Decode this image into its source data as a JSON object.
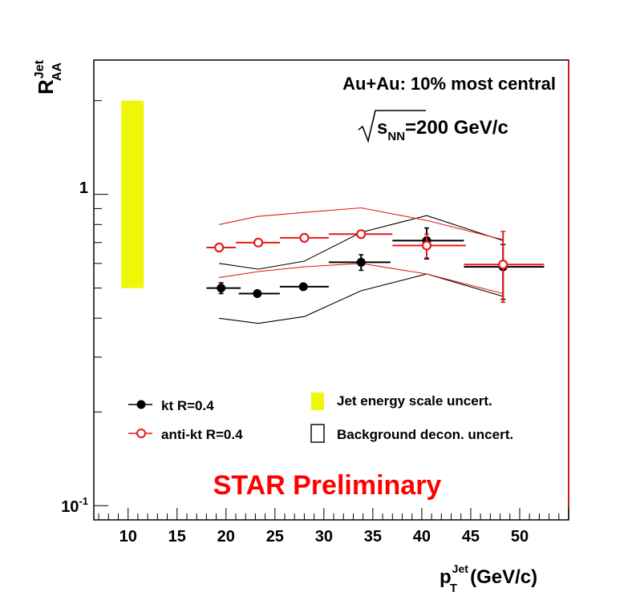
{
  "chart_data": {
    "type": "scatter",
    "scale_y": "log",
    "xlim": [
      6.5,
      55
    ],
    "ylim": [
      0.09,
      2.7
    ],
    "x_ticks": [
      {
        "value": 10,
        "label": "10"
      },
      {
        "value": 15,
        "label": "15"
      },
      {
        "value": 20,
        "label": "20"
      },
      {
        "value": 25,
        "label": "25"
      },
      {
        "value": 30,
        "label": "30"
      },
      {
        "value": 35,
        "label": "35"
      },
      {
        "value": 40,
        "label": "40"
      },
      {
        "value": 45,
        "label": "45"
      },
      {
        "value": 50,
        "label": "50"
      }
    ],
    "y_tick_1": "1",
    "y_tick_01_base": "10",
    "y_tick_01_exp": "-1",
    "xlabel": {
      "main": "p",
      "sub": "T",
      "sup": "Jet",
      "unit": "(GeV/c)"
    },
    "ylabel": {
      "main": "R",
      "sub": "AA",
      "sup": "Jet"
    },
    "annotations": {
      "collision": "Au+Au: 10% most central",
      "energy_s": "s",
      "energy_sub": "NN",
      "energy_value": "=200 GeV/c",
      "preliminary": "STAR Preliminary"
    },
    "series": [
      {
        "name": "kt R=0.4",
        "color": "#000000",
        "marker": "filled-circle",
        "points": [
          {
            "x": 19.5,
            "y": 0.5,
            "xlo": 18.0,
            "xhi": 21.5,
            "ylo": 0.48,
            "yhi": 0.52
          },
          {
            "x": 23.2,
            "y": 0.48,
            "xlo": 21.3,
            "xhi": 25.5,
            "ylo": 0.47,
            "yhi": 0.49
          },
          {
            "x": 27.9,
            "y": 0.505,
            "xlo": 25.5,
            "xhi": 30.5,
            "ylo": 0.495,
            "yhi": 0.515
          },
          {
            "x": 33.8,
            "y": 0.605,
            "xlo": 30.5,
            "xhi": 36.8,
            "ylo": 0.57,
            "yhi": 0.64
          },
          {
            "x": 40.5,
            "y": 0.71,
            "xlo": 37.0,
            "xhi": 44.3,
            "ylo": 0.62,
            "yhi": 0.78
          },
          {
            "x": 48.3,
            "y": 0.585,
            "xlo": 44.3,
            "xhi": 52.5,
            "ylo": 0.46,
            "yhi": 0.69
          }
        ],
        "band_upper": [
          {
            "x": 19.3,
            "y": 0.6
          },
          {
            "x": 23.3,
            "y": 0.575
          },
          {
            "x": 28.0,
            "y": 0.61
          },
          {
            "x": 33.8,
            "y": 0.755
          },
          {
            "x": 40.5,
            "y": 0.855
          },
          {
            "x": 48.3,
            "y": 0.71
          }
        ],
        "band_lower": [
          {
            "x": 19.3,
            "y": 0.4
          },
          {
            "x": 23.3,
            "y": 0.385
          },
          {
            "x": 28.0,
            "y": 0.405
          },
          {
            "x": 33.8,
            "y": 0.49
          },
          {
            "x": 40.5,
            "y": 0.555
          },
          {
            "x": 48.3,
            "y": 0.47
          }
        ]
      },
      {
        "name": "anti-kt R=0.4",
        "color": "#e41a1c",
        "marker": "open-circle",
        "points": [
          {
            "x": 19.3,
            "y": 0.675,
            "xlo": 18.0,
            "xhi": 21.0,
            "ylo": 0.655,
            "yhi": 0.695
          },
          {
            "x": 23.3,
            "y": 0.7,
            "xlo": 21.0,
            "xhi": 25.5,
            "ylo": 0.685,
            "yhi": 0.715
          },
          {
            "x": 28.0,
            "y": 0.725,
            "xlo": 25.5,
            "xhi": 30.5,
            "ylo": 0.71,
            "yhi": 0.74
          },
          {
            "x": 33.8,
            "y": 0.745,
            "xlo": 30.5,
            "xhi": 37.0,
            "ylo": 0.725,
            "yhi": 0.765
          },
          {
            "x": 40.5,
            "y": 0.685,
            "xlo": 37.0,
            "xhi": 44.5,
            "ylo": 0.625,
            "yhi": 0.745
          },
          {
            "x": 48.3,
            "y": 0.595,
            "xlo": 44.3,
            "xhi": 52.5,
            "ylo": 0.45,
            "yhi": 0.76
          }
        ],
        "band_upper": [
          {
            "x": 19.3,
            "y": 0.8
          },
          {
            "x": 23.3,
            "y": 0.85
          },
          {
            "x": 28.0,
            "y": 0.875
          },
          {
            "x": 33.8,
            "y": 0.905
          },
          {
            "x": 40.5,
            "y": 0.825
          },
          {
            "x": 48.3,
            "y": 0.715
          }
        ],
        "band_lower": [
          {
            "x": 19.3,
            "y": 0.54
          },
          {
            "x": 23.3,
            "y": 0.565
          },
          {
            "x": 28.0,
            "y": 0.585
          },
          {
            "x": 33.8,
            "y": 0.6
          },
          {
            "x": 40.5,
            "y": 0.555
          },
          {
            "x": 48.3,
            "y": 0.48
          }
        ]
      }
    ],
    "jes_uncertainty_box": {
      "x_from": 9.3,
      "x_to": 11.6,
      "y_from": 0.5,
      "y_to": 2.0,
      "color": "#eef707"
    },
    "legend": [
      {
        "label": "kt R=0.4",
        "style": "black-filled-marker"
      },
      {
        "label": "anti-kt R=0.4",
        "style": "red-open-marker"
      },
      {
        "label": "Jet energy scale uncert.",
        "style": "yellow-box"
      },
      {
        "label": "Background decon. uncert.",
        "style": "open-box"
      }
    ]
  }
}
